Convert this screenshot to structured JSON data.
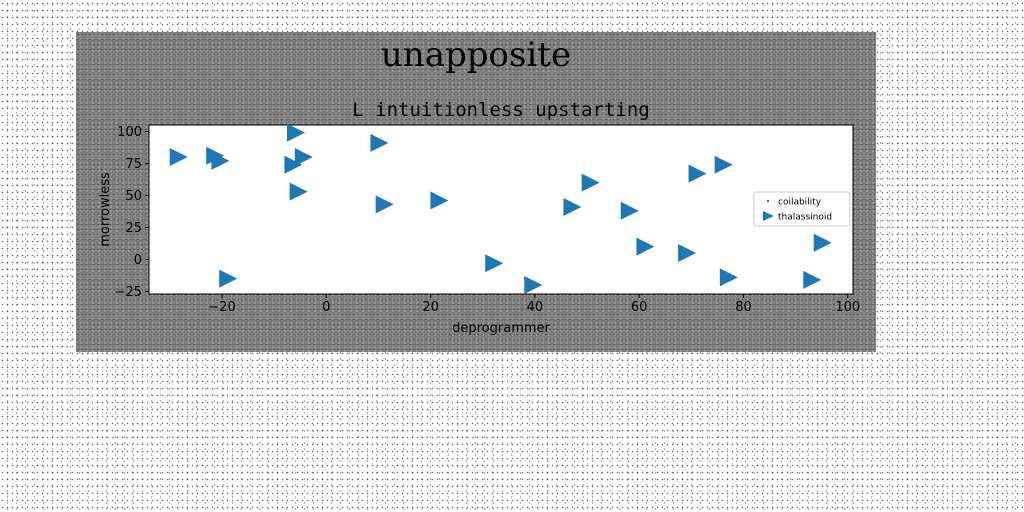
{
  "chart_data": {
    "type": "scatter",
    "suptitle": "unapposite",
    "title": "L intuitionless upstarting",
    "xlabel": "deprogrammer",
    "ylabel": "morrowless",
    "xlim": [
      -34,
      101
    ],
    "ylim": [
      -27,
      105
    ],
    "xticks": [
      -20,
      0,
      20,
      40,
      60,
      80,
      100
    ],
    "yticks": [
      -25,
      0,
      25,
      50,
      75,
      100
    ],
    "grid": false,
    "legend_position": "center-right",
    "series": [
      {
        "name": "coilability",
        "marker": "point",
        "color": "#1f77b4",
        "points": []
      },
      {
        "name": "thalassinoid",
        "marker": "triangle-right",
        "color": "#1f77b4",
        "points": [
          {
            "x": -28.5,
            "y": 80
          },
          {
            "x": -21.5,
            "y": 81
          },
          {
            "x": -20.5,
            "y": 77
          },
          {
            "x": -19,
            "y": -15
          },
          {
            "x": -6,
            "y": 99
          },
          {
            "x": -6.5,
            "y": 74
          },
          {
            "x": -4.5,
            "y": 80
          },
          {
            "x": -5.5,
            "y": 53
          },
          {
            "x": 10,
            "y": 91
          },
          {
            "x": 11,
            "y": 43
          },
          {
            "x": 21.5,
            "y": 46
          },
          {
            "x": 32,
            "y": -3
          },
          {
            "x": 39.5,
            "y": -20
          },
          {
            "x": 47,
            "y": 41
          },
          {
            "x": 50.5,
            "y": 60
          },
          {
            "x": 58,
            "y": 38
          },
          {
            "x": 61,
            "y": 10
          },
          {
            "x": 69,
            "y": 5
          },
          {
            "x": 71,
            "y": 67
          },
          {
            "x": 76,
            "y": 74
          },
          {
            "x": 77,
            "y": -14
          },
          {
            "x": 93,
            "y": -16
          },
          {
            "x": 95,
            "y": 13
          }
        ]
      }
    ]
  }
}
